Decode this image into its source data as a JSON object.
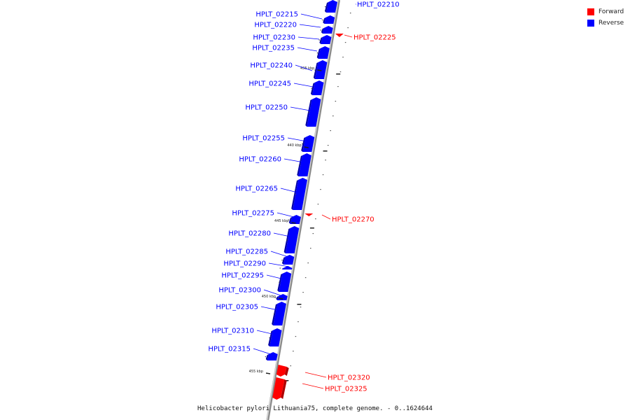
{
  "legend": {
    "forward_label": "Forward",
    "forward_color": "#ff0000",
    "reverse_label": "Reverse",
    "reverse_color": "#0000ff"
  },
  "caption": "Helicobacter pylori Lithuania75, complete genome. - 0..1624644",
  "ticks": [
    "435 kbp",
    "440 kbp",
    "445 kbp",
    "450 kbp",
    "455 kbp"
  ],
  "genes": [
    {
      "id": "HPLT_02210",
      "strand": "reverse"
    },
    {
      "id": "HPLT_02215",
      "strand": "reverse"
    },
    {
      "id": "HPLT_02220",
      "strand": "reverse"
    },
    {
      "id": "HPLT_02225",
      "strand": "forward"
    },
    {
      "id": "HPLT_02230",
      "strand": "reverse"
    },
    {
      "id": "HPLT_02235",
      "strand": "reverse"
    },
    {
      "id": "HPLT_02240",
      "strand": "reverse"
    },
    {
      "id": "HPLT_02245",
      "strand": "reverse"
    },
    {
      "id": "HPLT_02250",
      "strand": "reverse"
    },
    {
      "id": "HPLT_02255",
      "strand": "reverse"
    },
    {
      "id": "HPLT_02260",
      "strand": "reverse"
    },
    {
      "id": "HPLT_02265",
      "strand": "reverse"
    },
    {
      "id": "HPLT_02270",
      "strand": "forward"
    },
    {
      "id": "HPLT_02275",
      "strand": "reverse"
    },
    {
      "id": "HPLT_02280",
      "strand": "reverse"
    },
    {
      "id": "HPLT_02285",
      "strand": "reverse"
    },
    {
      "id": "HPLT_02290",
      "strand": "reverse"
    },
    {
      "id": "HPLT_02295",
      "strand": "reverse"
    },
    {
      "id": "HPLT_02300",
      "strand": "reverse"
    },
    {
      "id": "HPLT_02305",
      "strand": "reverse"
    },
    {
      "id": "HPLT_02310",
      "strand": "reverse"
    },
    {
      "id": "HPLT_02315",
      "strand": "reverse"
    },
    {
      "id": "HPLT_02320",
      "strand": "forward"
    },
    {
      "id": "HPLT_02325",
      "strand": "forward"
    }
  ]
}
